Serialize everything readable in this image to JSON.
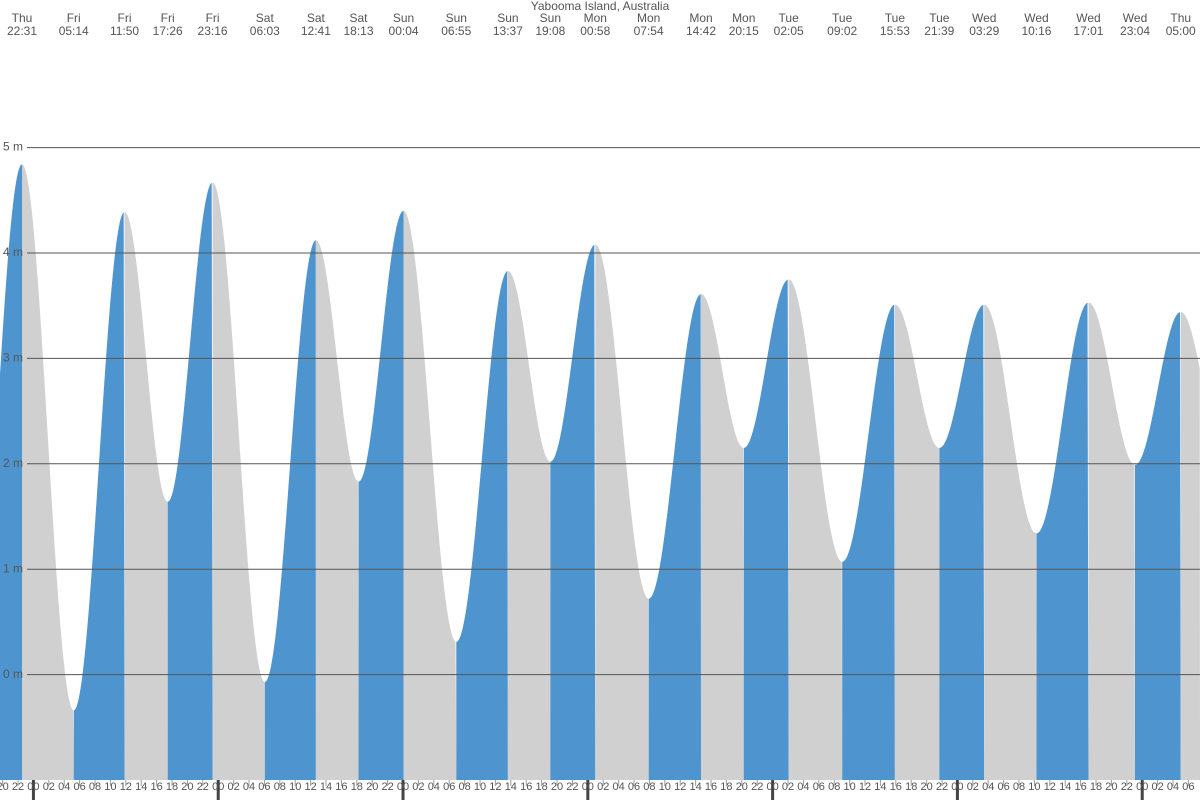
{
  "chart_data": {
    "type": "tide",
    "title": "Yabooma Island, Australia",
    "days": [
      "Thu",
      "Fri",
      "Fri",
      "Fri",
      "Fri",
      "Sat",
      "Sat",
      "Sat",
      "Sun",
      "Sun",
      "Sun",
      "Sun",
      "Mon",
      "Mon",
      "Mon",
      "Mon",
      "Tue",
      "Tue",
      "Tue",
      "Tue",
      "Wed",
      "Wed",
      "Wed",
      "Wed",
      "Thu"
    ],
    "times": [
      "22:31",
      "05:14",
      "11:50",
      "17:26",
      "23:16",
      "06:03",
      "12:41",
      "18:13",
      "00:04",
      "06:55",
      "13:37",
      "19:08",
      "00:58",
      "07:54",
      "14:42",
      "20:15",
      "02:05",
      "09:02",
      "15:53",
      "21:39",
      "03:29",
      "10:16",
      "17:01",
      "23:04",
      "05:00"
    ],
    "values": [
      4.84,
      -0.34,
      4.39,
      1.64,
      4.67,
      -0.07,
      4.12,
      1.83,
      4.4,
      0.31,
      3.83,
      2.02,
      4.08,
      0.72,
      3.61,
      2.15,
      3.75,
      1.07,
      3.51,
      2.15,
      3.51,
      1.34,
      3.53,
      1.99,
      3.44
    ],
    "rising_color": "#4e95d0",
    "falling_color": "#d0d0d0",
    "ylim": [
      -1,
      6.4
    ],
    "yticks": [
      {
        "value": 0,
        "label": "0 m"
      },
      {
        "value": 1,
        "label": "1 m"
      },
      {
        "value": 2,
        "label": "2 m"
      },
      {
        "value": 3,
        "label": "3 m"
      },
      {
        "value": 4,
        "label": "4 m"
      },
      {
        "value": 5,
        "label": "5 m"
      }
    ],
    "grid": true,
    "hour_ticks": [
      "20",
      "22",
      "00",
      "02",
      "04",
      "06",
      "08",
      "10",
      "12",
      "14",
      "16",
      "18",
      "20",
      "22",
      "00",
      "02",
      "04",
      "06",
      "08",
      "10",
      "12",
      "14",
      "16",
      "18",
      "20",
      "22",
      "00",
      "02",
      "04",
      "06",
      "08",
      "10",
      "12",
      "14",
      "16",
      "18",
      "20",
      "22",
      "00",
      "02",
      "04",
      "06",
      "08",
      "10",
      "12",
      "14",
      "16",
      "18",
      "20",
      "22",
      "00",
      "02",
      "04",
      "06",
      "08",
      "10",
      "12",
      "14",
      "16",
      "18",
      "20",
      "22",
      "00",
      "02",
      "04",
      "06",
      "08",
      "10",
      "12",
      "14",
      "16",
      "18",
      "20",
      "22",
      "00",
      "02",
      "04",
      "06"
    ]
  }
}
